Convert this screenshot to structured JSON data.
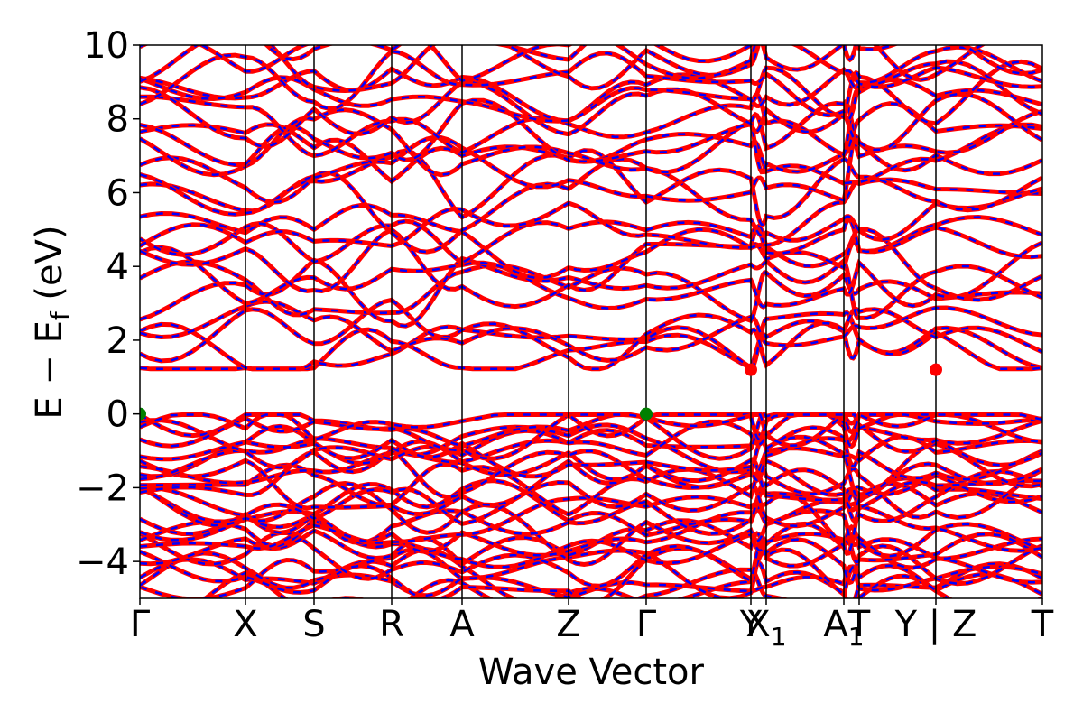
{
  "chart_data": {
    "type": "line",
    "title": "",
    "xlabel": "Wave Vector",
    "ylabel_main": "E − E",
    "ylabel_sub": "f",
    "ylabel_unit": " (eV)",
    "ylim": [
      -5,
      10
    ],
    "yticks": [
      -4,
      -2,
      0,
      2,
      4,
      6,
      8,
      10
    ],
    "ytick_labels": [
      "−4",
      "−2",
      "0",
      "2",
      "4",
      "6",
      "8",
      "10"
    ],
    "kpath_ticks": [
      {
        "x": 0.0,
        "label": "Γ"
      },
      {
        "x": 0.117,
        "label": "X"
      },
      {
        "x": 0.193,
        "label": "S"
      },
      {
        "x": 0.279,
        "label": "R"
      },
      {
        "x": 0.357,
        "label": "A"
      },
      {
        "x": 0.475,
        "label": "Z"
      },
      {
        "x": 0.561,
        "label": "Γ"
      },
      {
        "x": 0.677,
        "label": "Y"
      },
      {
        "x": 0.694,
        "label": "X",
        "sub": "1"
      },
      {
        "x": 0.78,
        "label": "A",
        "sub": "1"
      },
      {
        "x": 0.797,
        "label": "T"
      },
      {
        "x": 0.882,
        "label": "Y | Z"
      },
      {
        "x": 1.0,
        "label": "T"
      }
    ],
    "vbm": {
      "energy": 0.0,
      "k_positions": [
        0.0,
        0.561
      ],
      "color": "#008000"
    },
    "cbm": {
      "energy": 1.2,
      "k_positions": [
        0.677,
        0.882
      ],
      "color": "#ff0000"
    },
    "band_gap_eV": 1.2,
    "series": [
      {
        "color": "#ff0000",
        "style": "solid"
      },
      {
        "color": "#0000ff",
        "style": "dashed"
      }
    ],
    "grid": false
  }
}
